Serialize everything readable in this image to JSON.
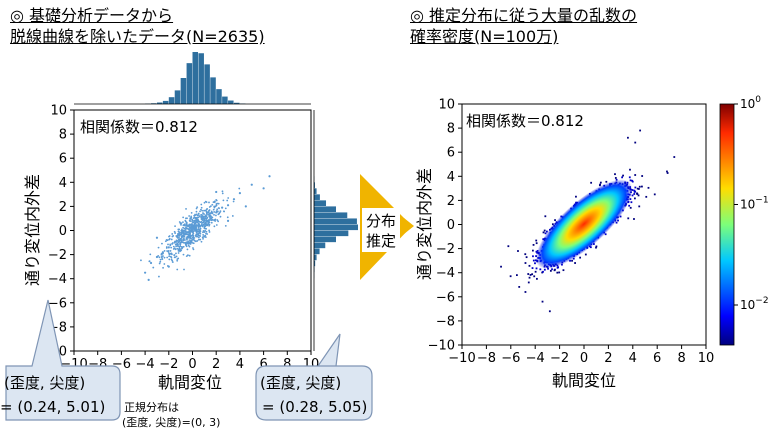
{
  "titles": {
    "left_line1": "◎ 基礎分析データから",
    "left_line2": "脱線曲線を除いたデータ(N=2635)",
    "right_line1": "◎ 推定分布に従う大量の乱数の",
    "right_line2": "確率密度(N=100万)"
  },
  "arrow_label_line1": "分布",
  "arrow_label_line2": "推定",
  "callouts": {
    "left_head": "(歪度, 尖度)",
    "left_value": "= (0.24, 5.01)",
    "right_head": "(歪度, 尖度)",
    "right_value": "= (0.28, 5.05)",
    "normal_line1": "正規分布は",
    "normal_line2": "(歪度, 尖度)=(0, 3)"
  },
  "colors": {
    "scatter_point": "#5b9bd5",
    "histogram": "#2e6f9e",
    "arrow": "#f0b400",
    "callout_fill": "#dce6f2",
    "callout_stroke": "#7f95b5"
  },
  "chart_data": [
    {
      "type": "scatter",
      "title": "",
      "xlabel": "軌間変位",
      "ylabel": "通り変位内外差",
      "xlim": [
        -10,
        10
      ],
      "ylim": [
        -10,
        10
      ],
      "xticks": [
        -10,
        -8,
        -6,
        -4,
        -2,
        0,
        2,
        4,
        6,
        8,
        10
      ],
      "yticks": [
        -10,
        -8,
        -6,
        -4,
        -2,
        0,
        2,
        4,
        6,
        8,
        10
      ],
      "annotation": "相関係数＝0.812",
      "grid": false,
      "sample_points": [
        [
          0.0,
          0.1
        ],
        [
          0.5,
          0.4
        ],
        [
          -0.5,
          -0.3
        ],
        [
          1.0,
          0.8
        ],
        [
          -1.0,
          -0.7
        ],
        [
          1.5,
          1.2
        ],
        [
          -1.5,
          -1.0
        ],
        [
          2.0,
          1.5
        ],
        [
          -2.0,
          -1.4
        ],
        [
          2.5,
          1.9
        ],
        [
          -2.5,
          -1.8
        ],
        [
          3.0,
          2.1
        ],
        [
          -3.0,
          -2.2
        ],
        [
          3.5,
          2.6
        ],
        [
          -3.5,
          -2.7
        ],
        [
          4.0,
          3.1
        ],
        [
          -4.0,
          -3.5
        ],
        [
          5.0,
          3.8
        ],
        [
          6.0,
          3.5
        ],
        [
          6.5,
          4.5
        ],
        [
          -3.7,
          -4.1
        ],
        [
          4.5,
          2.0
        ],
        [
          2.0,
          3.2
        ],
        [
          -2.0,
          -3.0
        ],
        [
          1.0,
          -0.5
        ],
        [
          -1.0,
          0.6
        ],
        [
          0.3,
          1.0
        ],
        [
          -0.3,
          -1.0
        ],
        [
          3.0,
          0.8
        ],
        [
          -3.0,
          -0.6
        ]
      ],
      "marginal_x": {
        "type": "histogram",
        "bins": [
          -4,
          -3.5,
          -3,
          -2.5,
          -2,
          -1.5,
          -1,
          -0.5,
          0,
          0.5,
          1,
          1.5,
          2,
          2.5,
          3,
          3.5,
          4
        ],
        "counts": [
          3,
          6,
          12,
          25,
          55,
          110,
          210,
          330,
          420,
          410,
          320,
          215,
          120,
          60,
          28,
          10,
          4
        ]
      },
      "marginal_y": {
        "type": "histogram",
        "bins": [
          -4,
          -3.5,
          -3,
          -2.5,
          -2,
          -1.5,
          -1,
          -0.5,
          0,
          0.5,
          1,
          1.5,
          2,
          2.5,
          3,
          3.5,
          4
        ],
        "counts": [
          2,
          5,
          11,
          24,
          52,
          105,
          205,
          320,
          410,
          400,
          310,
          205,
          112,
          55,
          24,
          9,
          3
        ]
      }
    },
    {
      "type": "heatmap",
      "title": "",
      "xlabel": "軌間変位",
      "ylabel": "通り変位内外差",
      "xlim": [
        -10,
        10
      ],
      "ylim": [
        -10,
        10
      ],
      "xticks": [
        -10,
        -8,
        -6,
        -4,
        -2,
        0,
        2,
        4,
        6,
        8,
        10
      ],
      "yticks": [
        -10,
        -8,
        -6,
        -4,
        -2,
        0,
        2,
        4,
        6,
        8,
        10
      ],
      "annotation": "相関係数＝0.812",
      "correlation": 0.812,
      "colorbar": {
        "scale": "log",
        "range": [
          0.004,
          1
        ],
        "tick_labels": [
          "10^0",
          "10^-1",
          "10^-2"
        ],
        "colormap": "jet"
      },
      "grid": false
    }
  ]
}
